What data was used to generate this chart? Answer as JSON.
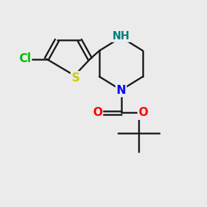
{
  "bg_color": "#ebebeb",
  "bond_color": "#1a1a1a",
  "line_width": 1.8,
  "atom_colors": {
    "Cl": "#00bb00",
    "S": "#cccc00",
    "N_boc": "#0000ff",
    "NH": "#008080",
    "O": "#ff0000",
    "C": "#1a1a1a"
  },
  "font_size": 11
}
